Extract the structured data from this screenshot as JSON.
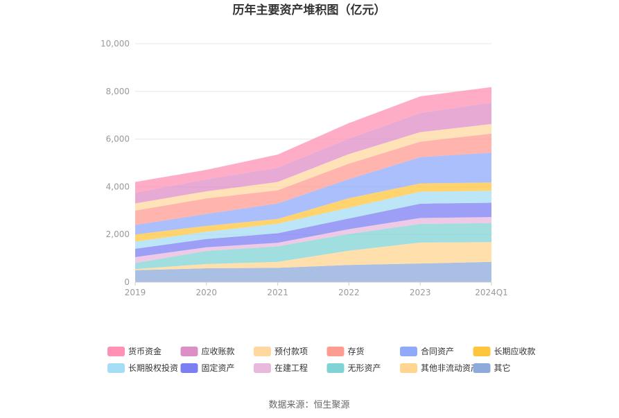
{
  "chart_data": {
    "type": "area",
    "stacked": true,
    "title": "历年主要资产堆积图（亿元）",
    "x": [
      "2019",
      "2020",
      "2021",
      "2022",
      "2023",
      "2024Q1"
    ],
    "ylim": [
      0,
      10000
    ],
    "yticks": [
      "0",
      "2,000",
      "4,000",
      "6,000",
      "8,000",
      "10,000"
    ],
    "grid": true,
    "legend_position": "bottom",
    "series": [
      {
        "name": "其它",
        "color": "#8eaadb",
        "values": [
          500,
          580,
          600,
          720,
          780,
          850
        ]
      },
      {
        "name": "其他非流动资产",
        "color": "#ffd591",
        "values": [
          50,
          180,
          250,
          600,
          880,
          830
        ]
      },
      {
        "name": "无形资产",
        "color": "#80d3d4",
        "values": [
          250,
          550,
          650,
          700,
          780,
          800
        ]
      },
      {
        "name": "在建工程",
        "color": "#e9b8dd",
        "values": [
          250,
          150,
          150,
          200,
          250,
          250
        ]
      },
      {
        "name": "固定资产",
        "color": "#7b7ff2",
        "values": [
          350,
          350,
          400,
          450,
          600,
          600
        ]
      },
      {
        "name": "长期股权投资",
        "color": "#a6ddf6",
        "values": [
          300,
          300,
          400,
          450,
          500,
          500
        ]
      },
      {
        "name": "长期应收款",
        "color": "#ffc53d",
        "values": [
          300,
          250,
          200,
          400,
          350,
          350
        ]
      },
      {
        "name": "合同资产",
        "color": "#8fa9fb",
        "values": [
          400,
          500,
          650,
          800,
          1100,
          1250
        ]
      },
      {
        "name": "存货",
        "color": "#ff9c92",
        "values": [
          600,
          650,
          550,
          650,
          650,
          800
        ]
      },
      {
        "name": "预付款项",
        "color": "#ffd8a0",
        "values": [
          300,
          300,
          350,
          400,
          400,
          400
        ]
      },
      {
        "name": "应收账款",
        "color": "#dd8ec5",
        "values": [
          450,
          500,
          600,
          650,
          800,
          900
        ]
      },
      {
        "name": "货币资金",
        "color": "#ff92b4",
        "values": [
          450,
          400,
          550,
          650,
          700,
          650
        ]
      }
    ],
    "legend_order": [
      "货币资金",
      "应收账款",
      "预付款项",
      "存货",
      "合同资产",
      "长期应收款",
      "长期股权投资",
      "固定资产",
      "在建工程",
      "无形资产",
      "其他非流动资产",
      "其它"
    ]
  },
  "source": "数据来源：恒生聚源"
}
